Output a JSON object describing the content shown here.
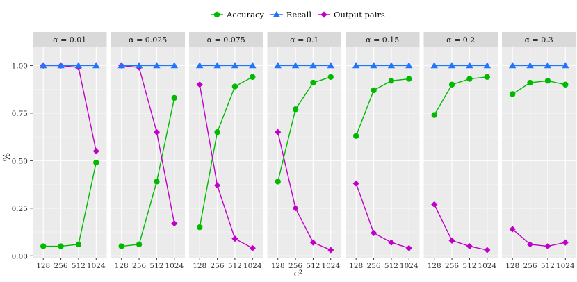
{
  "chart_data": {
    "type": "line",
    "layout": "facets",
    "xlabel": "c²",
    "ylabel": "%",
    "categories": [
      "128",
      "256",
      "512",
      "1024"
    ],
    "yticks": [
      "0.00",
      "0.25",
      "0.50",
      "0.75",
      "1.00"
    ],
    "ylim": [
      -0.01,
      1.1
    ],
    "grid": true,
    "legend_position": "top",
    "series_meta": [
      {
        "name": "Accuracy",
        "color": "#00BA00",
        "marker": "circle"
      },
      {
        "name": "Recall",
        "color": "#1F75FE",
        "marker": "triangle"
      },
      {
        "name": "Output pairs",
        "color": "#C000C8",
        "marker": "diamond"
      }
    ],
    "facets": [
      {
        "label": "α = 0.01",
        "series": [
          {
            "name": "Accuracy",
            "values": [
              0.05,
              0.05,
              0.06,
              0.49
            ]
          },
          {
            "name": "Recall",
            "values": [
              1.0,
              1.0,
              1.0,
              1.0
            ]
          },
          {
            "name": "Output pairs",
            "values": [
              1.0,
              1.0,
              0.99,
              0.55
            ]
          }
        ]
      },
      {
        "label": "α = 0.025",
        "series": [
          {
            "name": "Accuracy",
            "values": [
              0.05,
              0.06,
              0.39,
              0.83
            ]
          },
          {
            "name": "Recall",
            "values": [
              1.0,
              1.0,
              1.0,
              1.0
            ]
          },
          {
            "name": "Output pairs",
            "values": [
              1.0,
              0.99,
              0.65,
              0.17
            ]
          }
        ]
      },
      {
        "label": "α = 0.075",
        "series": [
          {
            "name": "Accuracy",
            "values": [
              0.15,
              0.65,
              0.89,
              0.94
            ]
          },
          {
            "name": "Recall",
            "values": [
              1.0,
              1.0,
              1.0,
              1.0
            ]
          },
          {
            "name": "Output pairs",
            "values": [
              0.9,
              0.37,
              0.09,
              0.04
            ]
          }
        ]
      },
      {
        "label": "α = 0.1",
        "series": [
          {
            "name": "Accuracy",
            "values": [
              0.39,
              0.77,
              0.91,
              0.94
            ]
          },
          {
            "name": "Recall",
            "values": [
              1.0,
              1.0,
              1.0,
              1.0
            ]
          },
          {
            "name": "Output pairs",
            "values": [
              0.65,
              0.25,
              0.07,
              0.03
            ]
          }
        ]
      },
      {
        "label": "α = 0.15",
        "series": [
          {
            "name": "Accuracy",
            "values": [
              0.63,
              0.87,
              0.92,
              0.93
            ]
          },
          {
            "name": "Recall",
            "values": [
              1.0,
              1.0,
              1.0,
              1.0
            ]
          },
          {
            "name": "Output pairs",
            "values": [
              0.38,
              0.12,
              0.07,
              0.04
            ]
          }
        ]
      },
      {
        "label": "α = 0.2",
        "series": [
          {
            "name": "Accuracy",
            "values": [
              0.74,
              0.9,
              0.93,
              0.94
            ]
          },
          {
            "name": "Recall",
            "values": [
              1.0,
              1.0,
              1.0,
              1.0
            ]
          },
          {
            "name": "Output pairs",
            "values": [
              0.27,
              0.08,
              0.05,
              0.03
            ]
          }
        ]
      },
      {
        "label": "α = 0.3",
        "series": [
          {
            "name": "Accuracy",
            "values": [
              0.85,
              0.91,
              0.92,
              0.9
            ]
          },
          {
            "name": "Recall",
            "values": [
              1.0,
              1.0,
              1.0,
              1.0
            ]
          },
          {
            "name": "Output pairs",
            "values": [
              0.14,
              0.06,
              0.05,
              0.07
            ]
          }
        ]
      }
    ]
  }
}
